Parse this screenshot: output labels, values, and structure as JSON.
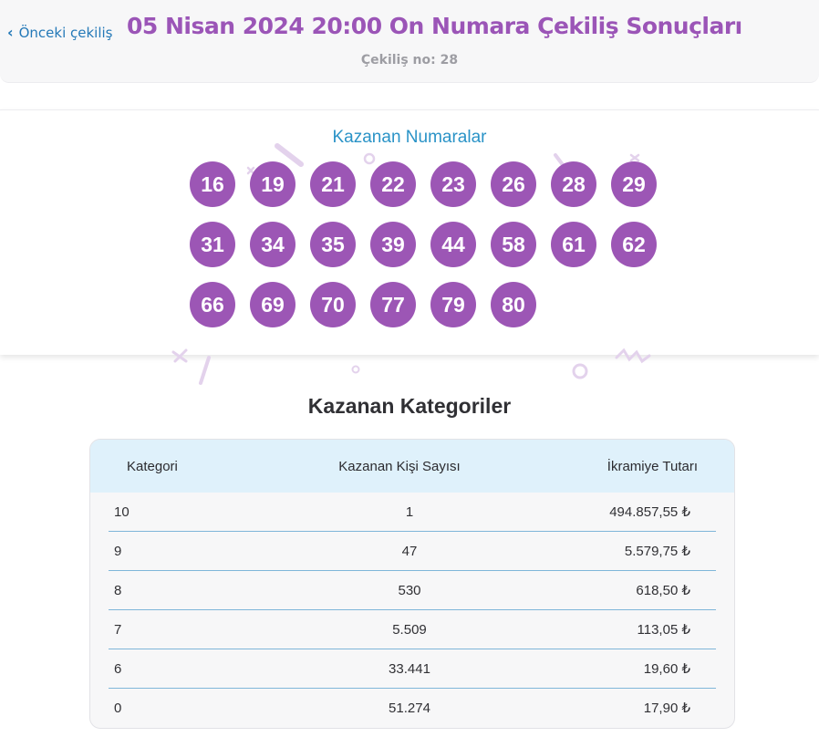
{
  "header": {
    "back_label": "Önceki çekiliş",
    "title": "05 Nisan 2024 20:00 On Numara Çekiliş Sonuçları",
    "draw_no": "Çekiliş no: 28"
  },
  "winning_numbers": {
    "title": "Kazanan Numaralar",
    "numbers": [
      "16",
      "19",
      "21",
      "22",
      "23",
      "26",
      "28",
      "29",
      "31",
      "34",
      "35",
      "39",
      "44",
      "58",
      "61",
      "62",
      "66",
      "69",
      "70",
      "77",
      "79",
      "80"
    ]
  },
  "categories": {
    "title": "Kazanan Kategoriler",
    "columns": [
      "Kategori",
      "Kazanan Kişi Sayısı",
      "İkramiye Tutarı"
    ],
    "rows": [
      {
        "category": "10",
        "winners": "1",
        "prize": "494.857,55 ₺"
      },
      {
        "category": "9",
        "winners": "47",
        "prize": "5.579,75 ₺"
      },
      {
        "category": "8",
        "winners": "530",
        "prize": "618,50 ₺"
      },
      {
        "category": "7",
        "winners": "5.509",
        "prize": "113,05 ₺"
      },
      {
        "category": "6",
        "winners": "33.441",
        "prize": "19,60 ₺"
      },
      {
        "category": "0",
        "winners": "51.274",
        "prize": "17,90 ₺"
      }
    ]
  },
  "colors": {
    "accent_purple": "#9c56b5",
    "accent_blue": "#2a93c7",
    "table_header_bg": "#dff1fb"
  }
}
